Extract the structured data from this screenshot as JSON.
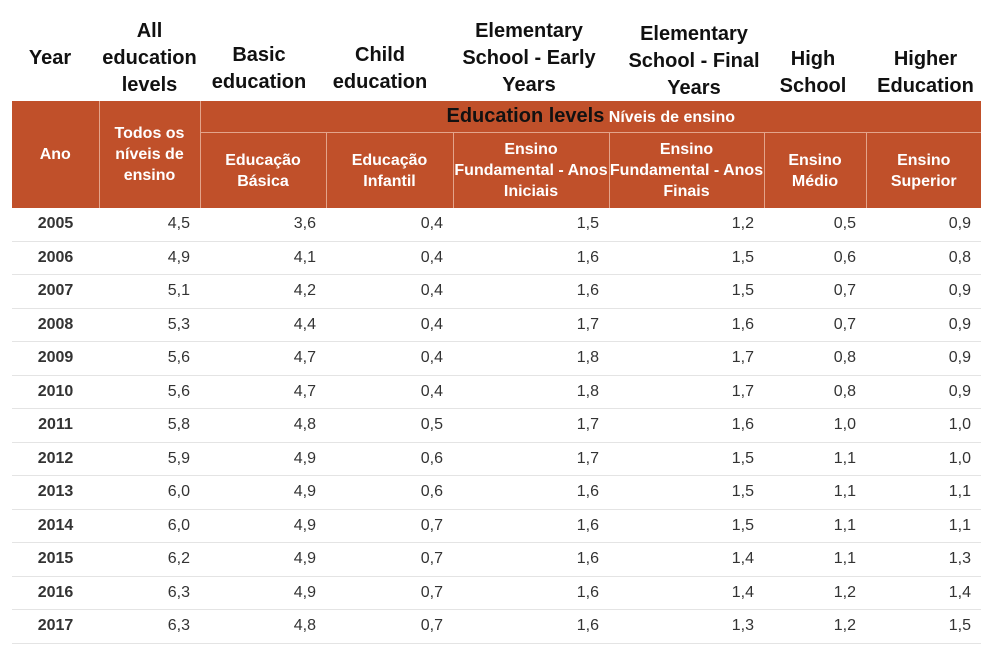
{
  "english_headers": {
    "year": "Year",
    "all_levels": "All education levels",
    "basic": "Basic education",
    "child": "Child education",
    "elem_early": "Elementary School - Early Years",
    "elem_final": "Elementary School - Final Years",
    "high": "High School",
    "higher": "Higher Education",
    "group": "Education levels"
  },
  "portuguese_headers": {
    "ano": "Ano",
    "todos": "Todos os níveis de ensino",
    "group": "Níveis de ensino",
    "basica": "Educação Básica",
    "infantil": "Educação Infantil",
    "fund_iniciais": "Ensino Fundamental - Anos Iniciais",
    "fund_finais": "Ensino Fundamental - Anos Finais",
    "medio": "Ensino Médio",
    "superior": "Ensino Superior"
  },
  "colors": {
    "header_bg": "#c0502a",
    "header_text": "#ffffff"
  },
  "rows": [
    {
      "year": "2005",
      "all": "4,5",
      "basic": "3,6",
      "child": "0,4",
      "early": "1,5",
      "final": "1,2",
      "high": "0,5",
      "higher": "0,9"
    },
    {
      "year": "2006",
      "all": "4,9",
      "basic": "4,1",
      "child": "0,4",
      "early": "1,6",
      "final": "1,5",
      "high": "0,6",
      "higher": "0,8"
    },
    {
      "year": "2007",
      "all": "5,1",
      "basic": "4,2",
      "child": "0,4",
      "early": "1,6",
      "final": "1,5",
      "high": "0,7",
      "higher": "0,9"
    },
    {
      "year": "2008",
      "all": "5,3",
      "basic": "4,4",
      "child": "0,4",
      "early": "1,7",
      "final": "1,6",
      "high": "0,7",
      "higher": "0,9"
    },
    {
      "year": "2009",
      "all": "5,6",
      "basic": "4,7",
      "child": "0,4",
      "early": "1,8",
      "final": "1,7",
      "high": "0,8",
      "higher": "0,9"
    },
    {
      "year": "2010",
      "all": "5,6",
      "basic": "4,7",
      "child": "0,4",
      "early": "1,8",
      "final": "1,7",
      "high": "0,8",
      "higher": "0,9"
    },
    {
      "year": "2011",
      "all": "5,8",
      "basic": "4,8",
      "child": "0,5",
      "early": "1,7",
      "final": "1,6",
      "high": "1,0",
      "higher": "1,0"
    },
    {
      "year": "2012",
      "all": "5,9",
      "basic": "4,9",
      "child": "0,6",
      "early": "1,7",
      "final": "1,5",
      "high": "1,1",
      "higher": "1,0"
    },
    {
      "year": "2013",
      "all": "6,0",
      "basic": "4,9",
      "child": "0,6",
      "early": "1,6",
      "final": "1,5",
      "high": "1,1",
      "higher": "1,1"
    },
    {
      "year": "2014",
      "all": "6,0",
      "basic": "4,9",
      "child": "0,7",
      "early": "1,6",
      "final": "1,5",
      "high": "1,1",
      "higher": "1,1"
    },
    {
      "year": "2015",
      "all": "6,2",
      "basic": "4,9",
      "child": "0,7",
      "early": "1,6",
      "final": "1,4",
      "high": "1,1",
      "higher": "1,3"
    },
    {
      "year": "2016",
      "all": "6,3",
      "basic": "4,9",
      "child": "0,7",
      "early": "1,6",
      "final": "1,4",
      "high": "1,2",
      "higher": "1,4"
    },
    {
      "year": "2017",
      "all": "6,3",
      "basic": "4,8",
      "child": "0,7",
      "early": "1,6",
      "final": "1,3",
      "high": "1,2",
      "higher": "1,5"
    }
  ]
}
